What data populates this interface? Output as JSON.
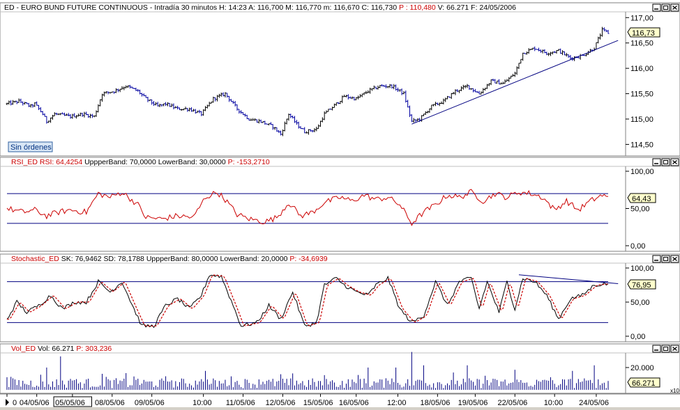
{
  "chart_data": [
    {
      "type": "ohlc",
      "name": "price-panel",
      "header": {
        "symbol": "ED",
        "sep": "-",
        "title": "EURO BUND FUTURE CONTINUOUS",
        "interval": "Intradía 30 minutos",
        "h": "H: 14:23",
        "a": "A: 116,700",
        "m": "M: 116,770",
        "mm": "m: 116,670",
        "c": "C: 116,730",
        "p": "P : 110,480",
        "v": "V: 66.271",
        "f": "F: 24/05/2006"
      },
      "ylim": [
        114.3,
        117.1
      ],
      "y_ticks": [
        "117,00",
        "116,50",
        "116,00",
        "115,50",
        "115,00",
        "114,50"
      ],
      "last_value": "116,73",
      "badge": "Sin órdenes",
      "anchors": [
        [
          0,
          115.3
        ],
        [
          6,
          115.35
        ],
        [
          12,
          115.25
        ],
        [
          14,
          115.3
        ],
        [
          18,
          115.1
        ],
        [
          20,
          114.95
        ],
        [
          24,
          115.1
        ],
        [
          32,
          115.05
        ],
        [
          38,
          115.1
        ],
        [
          44,
          115.05
        ],
        [
          48,
          115.5
        ],
        [
          54,
          115.55
        ],
        [
          60,
          115.65
        ],
        [
          66,
          115.55
        ],
        [
          70,
          115.4
        ],
        [
          76,
          115.25
        ],
        [
          80,
          115.3
        ],
        [
          86,
          115.2
        ],
        [
          92,
          115.2
        ],
        [
          98,
          115.1
        ],
        [
          104,
          115.4
        ],
        [
          110,
          115.5
        ],
        [
          116,
          115.2
        ],
        [
          122,
          115.0
        ],
        [
          128,
          114.95
        ],
        [
          134,
          114.85
        ],
        [
          138,
          114.7
        ],
        [
          142,
          115.1
        ],
        [
          146,
          114.9
        ],
        [
          150,
          114.75
        ],
        [
          156,
          114.8
        ],
        [
          160,
          115.1
        ],
        [
          166,
          115.3
        ],
        [
          170,
          115.45
        ],
        [
          176,
          115.4
        ],
        [
          182,
          115.55
        ],
        [
          188,
          115.65
        ],
        [
          194,
          115.65
        ],
        [
          200,
          115.5
        ],
        [
          204,
          114.95
        ],
        [
          208,
          115.0
        ],
        [
          214,
          115.25
        ],
        [
          220,
          115.35
        ],
        [
          226,
          115.55
        ],
        [
          232,
          115.65
        ],
        [
          238,
          115.5
        ],
        [
          244,
          115.75
        ],
        [
          250,
          115.7
        ],
        [
          256,
          115.9
        ],
        [
          260,
          116.3
        ],
        [
          266,
          116.4
        ],
        [
          272,
          116.3
        ],
        [
          278,
          116.35
        ],
        [
          284,
          116.2
        ],
        [
          290,
          116.25
        ],
        [
          296,
          116.4
        ],
        [
          300,
          116.75
        ],
        [
          303,
          116.7
        ]
      ],
      "trendline": [
        [
          204,
          114.9
        ],
        [
          308,
          116.55
        ]
      ]
    },
    {
      "type": "line",
      "name": "rsi-panel",
      "header": {
        "label": "RSI_ED",
        "rsi": "RSI: 64,4254",
        "upper": "UppperBand: 70,0000",
        "lower": "LowerBand: 30,0000",
        "p": "P: -153,2710"
      },
      "ylim": [
        0,
        100
      ],
      "y_ticks": [
        "100,00",
        "50,00",
        "0,00"
      ],
      "upper_band": 70,
      "lower_band": 30,
      "last_value": "64,43",
      "anchors": [
        [
          0,
          50
        ],
        [
          8,
          45
        ],
        [
          14,
          48
        ],
        [
          20,
          40
        ],
        [
          26,
          45
        ],
        [
          32,
          48
        ],
        [
          40,
          45
        ],
        [
          46,
          70
        ],
        [
          52,
          65
        ],
        [
          58,
          72
        ],
        [
          66,
          55
        ],
        [
          70,
          38
        ],
        [
          78,
          36
        ],
        [
          86,
          40
        ],
        [
          94,
          38
        ],
        [
          100,
          65
        ],
        [
          106,
          72
        ],
        [
          110,
          62
        ],
        [
          116,
          42
        ],
        [
          122,
          36
        ],
        [
          130,
          32
        ],
        [
          136,
          38
        ],
        [
          142,
          58
        ],
        [
          148,
          40
        ],
        [
          154,
          45
        ],
        [
          160,
          58
        ],
        [
          168,
          65
        ],
        [
          174,
          60
        ],
        [
          180,
          68
        ],
        [
          186,
          62
        ],
        [
          192,
          65
        ],
        [
          198,
          55
        ],
        [
          204,
          30
        ],
        [
          210,
          45
        ],
        [
          216,
          55
        ],
        [
          222,
          68
        ],
        [
          228,
          65
        ],
        [
          234,
          72
        ],
        [
          240,
          60
        ],
        [
          246,
          70
        ],
        [
          252,
          65
        ],
        [
          258,
          72
        ],
        [
          264,
          70
        ],
        [
          270,
          65
        ],
        [
          276,
          48
        ],
        [
          282,
          60
        ],
        [
          288,
          48
        ],
        [
          294,
          60
        ],
        [
          300,
          68
        ],
        [
          303,
          64
        ]
      ]
    },
    {
      "type": "line",
      "name": "stochastic-panel",
      "header": {
        "label": "Stochastic_ED",
        "sk": "SK: 76,9462",
        "sd": "SD: 78,1788",
        "upper": "UppperBand: 80,0000",
        "lower": "LowerBand: 20,0000",
        "p": "P: -34,6939"
      },
      "ylim": [
        0,
        100
      ],
      "y_ticks": [
        "100,00",
        "50,00",
        "0,00"
      ],
      "upper_band": 80,
      "lower_band": 20,
      "last_value": "76,95",
      "anchors": [
        [
          0,
          25
        ],
        [
          5,
          50
        ],
        [
          10,
          35
        ],
        [
          16,
          45
        ],
        [
          22,
          60
        ],
        [
          28,
          40
        ],
        [
          34,
          50
        ],
        [
          40,
          50
        ],
        [
          46,
          80
        ],
        [
          52,
          65
        ],
        [
          58,
          80
        ],
        [
          64,
          40
        ],
        [
          68,
          15
        ],
        [
          74,
          15
        ],
        [
          80,
          45
        ],
        [
          86,
          55
        ],
        [
          92,
          40
        ],
        [
          98,
          60
        ],
        [
          102,
          90
        ],
        [
          108,
          88
        ],
        [
          114,
          45
        ],
        [
          118,
          15
        ],
        [
          126,
          20
        ],
        [
          132,
          45
        ],
        [
          138,
          25
        ],
        [
          144,
          65
        ],
        [
          150,
          15
        ],
        [
          156,
          20
        ],
        [
          160,
          75
        ],
        [
          166,
          85
        ],
        [
          170,
          75
        ],
        [
          176,
          65
        ],
        [
          182,
          60
        ],
        [
          186,
          75
        ],
        [
          192,
          85
        ],
        [
          198,
          40
        ],
        [
          204,
          20
        ],
        [
          210,
          30
        ],
        [
          216,
          80
        ],
        [
          222,
          45
        ],
        [
          228,
          80
        ],
        [
          234,
          85
        ],
        [
          238,
          40
        ],
        [
          242,
          80
        ],
        [
          248,
          35
        ],
        [
          252,
          80
        ],
        [
          256,
          40
        ],
        [
          260,
          85
        ],
        [
          266,
          80
        ],
        [
          272,
          60
        ],
        [
          278,
          25
        ],
        [
          284,
          55
        ],
        [
          290,
          60
        ],
        [
          296,
          75
        ],
        [
          303,
          77
        ]
      ],
      "divergence_line": [
        [
          258,
          90
        ],
        [
          308,
          77
        ]
      ]
    },
    {
      "type": "bar",
      "name": "volume-panel",
      "header": {
        "label": "Vol_ED",
        "vol": "Vol: 66.271",
        "p": "P: 303,236"
      },
      "ylim": [
        0,
        30000
      ],
      "y_ticks": [
        "20.000"
      ],
      "last_value": "66.271",
      "scale_note": "x10",
      "peaks": [
        [
          20,
          20000
        ],
        [
          27,
          30000
        ],
        [
          60,
          15000
        ],
        [
          100,
          17000
        ],
        [
          138,
          14000
        ],
        [
          182,
          20000
        ],
        [
          196,
          20000
        ],
        [
          204,
          34000
        ],
        [
          210,
          22000
        ],
        [
          232,
          22000
        ],
        [
          256,
          18000
        ],
        [
          285,
          17000
        ],
        [
          296,
          22000
        ]
      ]
    },
    {
      "type": "axis",
      "name": "time-axis",
      "x_labels": [
        "0",
        "04/05/06",
        "05/05/06",
        "08/05/06",
        "09/05/06",
        "10:00",
        "11/05/06",
        "12/05/06",
        "15/05/06",
        "16/05/06",
        "12:00",
        "18/05/06",
        "19/05/06",
        "22/05/06",
        "10:00",
        "24/05/06"
      ],
      "x_label_positions": [
        0,
        15,
        33,
        53,
        73,
        99,
        119,
        139,
        158,
        176,
        197,
        217,
        236,
        256,
        276,
        297
      ],
      "highlight_label": "05/05/06"
    }
  ],
  "colors": {
    "up": "#000000",
    "down": "#0000a0",
    "band": "#000080",
    "rsi": "#cc0000",
    "sd": "#cc0000",
    "sk": "#000000",
    "volume": "#000080",
    "header_red": "#cc0000",
    "title_bar": "#ffffff"
  }
}
